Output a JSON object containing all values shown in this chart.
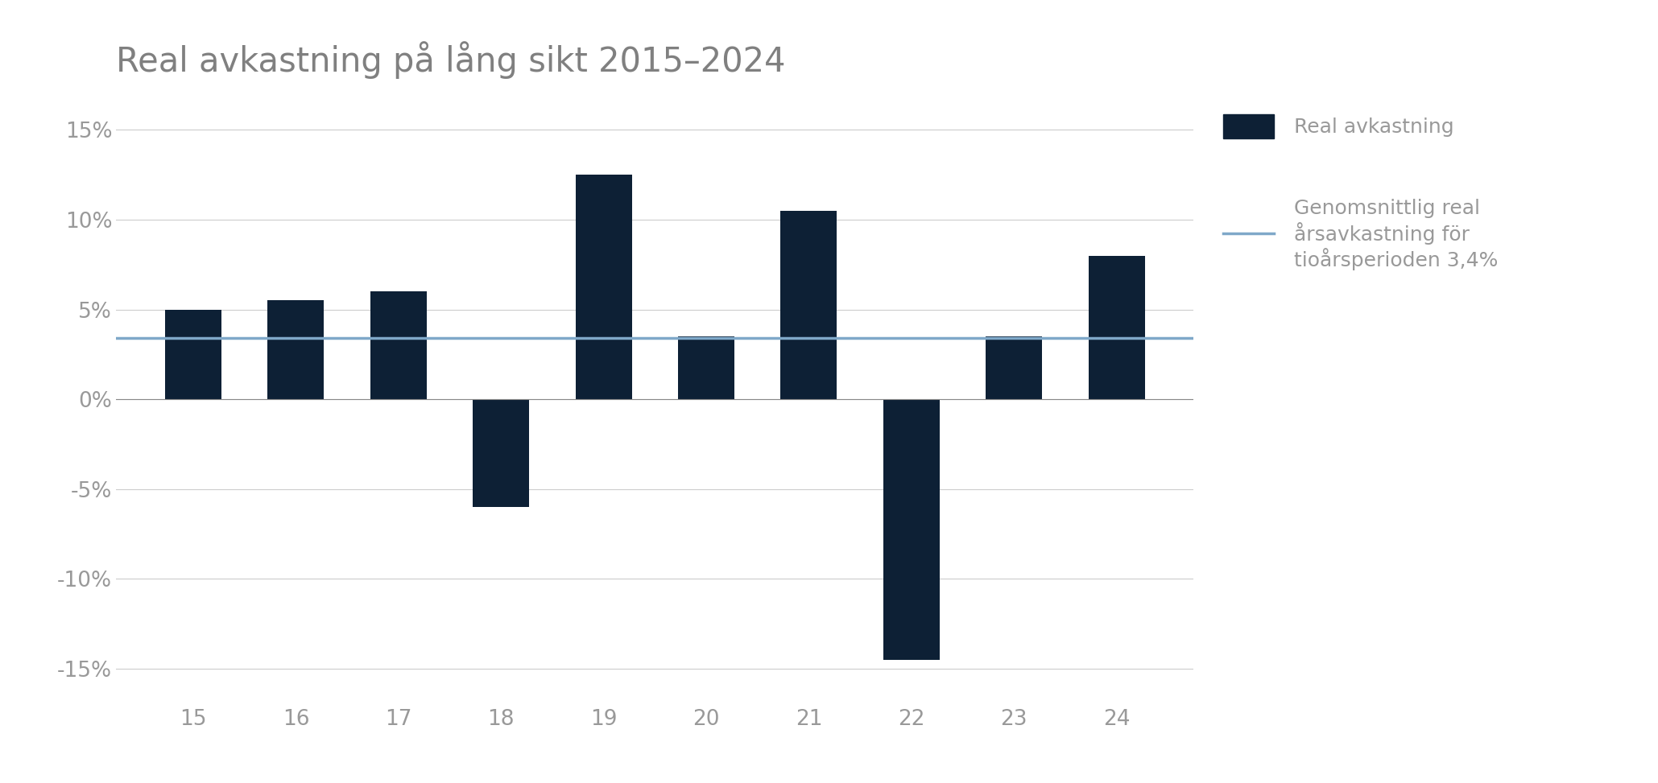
{
  "title": "Real avkastning på lång sikt 2015–2024",
  "categories": [
    "15",
    "16",
    "17",
    "18",
    "19",
    "20",
    "21",
    "22",
    "23",
    "24"
  ],
  "values": [
    5.0,
    5.5,
    6.0,
    -6.0,
    12.5,
    3.5,
    10.5,
    -14.5,
    3.5,
    8.0
  ],
  "avg_line": 3.4,
  "bar_color": "#0d2035",
  "avg_line_color": "#7fa8c9",
  "title_color": "#808080",
  "tick_color": "#999999",
  "grid_color": "#cccccc",
  "background_color": "#ffffff",
  "ylim": [
    -17,
    17
  ],
  "yticks": [
    -15,
    -10,
    -5,
    0,
    5,
    10,
    15
  ],
  "legend_bar_label": "Real avkastning",
  "legend_line_label": "Genomsnittlig real\nårsavkastning för\ntioårsperioden 3,4%",
  "title_fontsize": 30,
  "tick_fontsize": 19,
  "legend_fontsize": 18
}
